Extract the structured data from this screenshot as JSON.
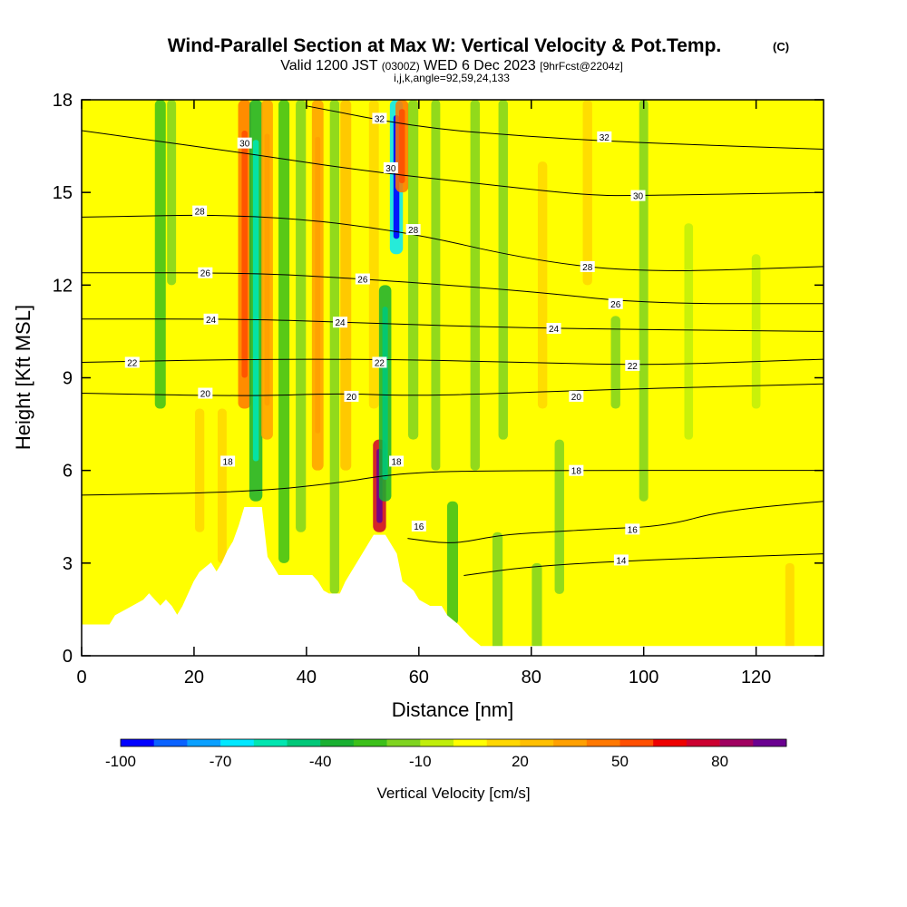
{
  "chart_data": {
    "type": "heatmap",
    "title": "Wind-Parallel Section at Max W: Vertical Velocity & Pot.Temp.",
    "title_suffix": "(C)",
    "subtitle_valid": "Valid 1200 JST",
    "subtitle_zulu": "(0300Z)",
    "subtitle_date": "WED 6 Dec 2023",
    "subtitle_fcst": "[9hrFcst@2204z]",
    "subtitle_params": "i,j,k,angle=92,59,24,133",
    "xlabel": "Distance [nm]",
    "ylabel": "Height [Kft MSL]",
    "xlim": [
      0,
      132
    ],
    "ylim": [
      0,
      18
    ],
    "x_ticks": [
      "0",
      "20",
      "40",
      "60",
      "80",
      "100",
      "120"
    ],
    "y_ticks": [
      "0",
      "3",
      "6",
      "9",
      "12",
      "15",
      "18"
    ],
    "colorbar": {
      "label": "Vertical Velocity [cm/s]",
      "tick_labels": [
        "-100",
        "-70",
        "-40",
        "-10",
        "20",
        "50",
        "80"
      ],
      "bins": [
        -100,
        -90,
        -80,
        -70,
        -60,
        -50,
        -40,
        -30,
        -20,
        -10,
        0,
        10,
        20,
        30,
        40,
        50,
        60,
        70,
        80,
        90,
        100
      ],
      "colors": [
        "#0000ff",
        "#0a62ff",
        "#0aa0ff",
        "#00e8ff",
        "#00e6b0",
        "#00c878",
        "#19b031",
        "#3cc01a",
        "#7fd420",
        "#c0ee0a",
        "#ffff00",
        "#ffd700",
        "#ffbf00",
        "#ffa000",
        "#ff7800",
        "#ff4f00",
        "#ee0000",
        "#cc0030",
        "#a00060",
        "#6a0090"
      ]
    },
    "background_w": 4,
    "vertical_velocity_features": [
      {
        "x": 14,
        "w": -25,
        "z0": 8,
        "z1": 18
      },
      {
        "x": 16,
        "w": -12,
        "z0": 12,
        "z1": 18
      },
      {
        "x": 21,
        "w": 14,
        "z0": 4,
        "z1": 8
      },
      {
        "x": 25,
        "w": 12,
        "z0": 3,
        "z1": 8
      },
      {
        "x": 29,
        "w": 45,
        "z0": 8,
        "z1": 18
      },
      {
        "x": 31,
        "w": -40,
        "z0": 5,
        "z1": 18
      },
      {
        "x": 33,
        "w": 30,
        "z0": 7,
        "z1": 18
      },
      {
        "x": 36,
        "w": -25,
        "z0": 3,
        "z1": 18
      },
      {
        "x": 39,
        "w": -20,
        "z0": 4,
        "z1": 18
      },
      {
        "x": 42,
        "w": 30,
        "z0": 6,
        "z1": 18
      },
      {
        "x": 45,
        "w": -15,
        "z0": 2,
        "z1": 18
      },
      {
        "x": 47,
        "w": 25,
        "z0": 6,
        "z1": 18
      },
      {
        "x": 52,
        "w": 18,
        "z0": 8,
        "z1": 18
      },
      {
        "x": 53,
        "w": 75,
        "z0": 4,
        "z1": 7
      },
      {
        "x": 54,
        "w": -35,
        "z0": 5,
        "z1": 12
      },
      {
        "x": 56,
        "w": -70,
        "z0": 13,
        "z1": 18
      },
      {
        "x": 57,
        "w": 40,
        "z0": 15,
        "z1": 18
      },
      {
        "x": 59,
        "w": -20,
        "z0": 7,
        "z1": 18
      },
      {
        "x": 63,
        "w": -12,
        "z0": 6,
        "z1": 18
      },
      {
        "x": 66,
        "w": -25,
        "z0": 1,
        "z1": 5
      },
      {
        "x": 70,
        "w": -15,
        "z0": 6,
        "z1": 18
      },
      {
        "x": 74,
        "w": -20,
        "z0": 0,
        "z1": 4
      },
      {
        "x": 75,
        "w": -15,
        "z0": 7,
        "z1": 18
      },
      {
        "x": 81,
        "w": -20,
        "z0": 0,
        "z1": 3
      },
      {
        "x": 82,
        "w": 15,
        "z0": 8,
        "z1": 16
      },
      {
        "x": 85,
        "w": -15,
        "z0": 2,
        "z1": 7
      },
      {
        "x": 90,
        "w": 15,
        "z0": 12,
        "z1": 18
      },
      {
        "x": 95,
        "w": -15,
        "z0": 8,
        "z1": 11
      },
      {
        "x": 100,
        "w": -12,
        "z0": 5,
        "z1": 18
      },
      {
        "x": 108,
        "w": -10,
        "z0": 7,
        "z1": 14
      },
      {
        "x": 120,
        "w": -10,
        "z0": 8,
        "z1": 13
      },
      {
        "x": 126,
        "w": 12,
        "z0": 0,
        "z1": 3
      }
    ],
    "terrain": [
      [
        0,
        1
      ],
      [
        5,
        1
      ],
      [
        6,
        1.3
      ],
      [
        9,
        1.6
      ],
      [
        11,
        1.8
      ],
      [
        12,
        2
      ],
      [
        13,
        1.8
      ],
      [
        14,
        1.6
      ],
      [
        15,
        1.8
      ],
      [
        16,
        1.6
      ],
      [
        17,
        1.3
      ],
      [
        18,
        1.6
      ],
      [
        19,
        2
      ],
      [
        20,
        2.4
      ],
      [
        21,
        2.7
      ],
      [
        23,
        3
      ],
      [
        24,
        2.7
      ],
      [
        25,
        3
      ],
      [
        26,
        3.4
      ],
      [
        27,
        3.7
      ],
      [
        28,
        4.2
      ],
      [
        29,
        4.8
      ],
      [
        32,
        4.8
      ],
      [
        33,
        3.2
      ],
      [
        35,
        2.6
      ],
      [
        37,
        2.6
      ],
      [
        39,
        2.6
      ],
      [
        40,
        2.6
      ],
      [
        41,
        2.6
      ],
      [
        42,
        2.4
      ],
      [
        43,
        2.1
      ],
      [
        44,
        2
      ],
      [
        46,
        2
      ],
      [
        47,
        2.4
      ],
      [
        48,
        2.7
      ],
      [
        49,
        3
      ],
      [
        50,
        3.3
      ],
      [
        51,
        3.6
      ],
      [
        52,
        3.9
      ],
      [
        54,
        3.9
      ],
      [
        55,
        3.6
      ],
      [
        56,
        3.3
      ],
      [
        57,
        2.4
      ],
      [
        59,
        2.1
      ],
      [
        60,
        1.8
      ],
      [
        62,
        1.6
      ],
      [
        64,
        1.6
      ],
      [
        65,
        1.3
      ],
      [
        67,
        1
      ],
      [
        69,
        0.6
      ],
      [
        71,
        0.3
      ],
      [
        73,
        0.3
      ],
      [
        132,
        0.3
      ]
    ],
    "isentropes": [
      {
        "label": "14",
        "points": [
          [
            68,
            2.6
          ],
          [
            80,
            2.9
          ],
          [
            100,
            3.1
          ],
          [
            132,
            3.3
          ]
        ]
      },
      {
        "label": "16",
        "points": [
          [
            58,
            3.8
          ],
          [
            66,
            3.6
          ],
          [
            74,
            3.9
          ],
          [
            82,
            4
          ],
          [
            92,
            4.1
          ],
          [
            104,
            4.2
          ],
          [
            114,
            4.7
          ],
          [
            132,
            5
          ]
        ]
      },
      {
        "label": "18",
        "points": [
          [
            0,
            5.2
          ],
          [
            30,
            5.3
          ],
          [
            46,
            5.6
          ],
          [
            56,
            5.9
          ],
          [
            70,
            6
          ],
          [
            132,
            6
          ]
        ]
      },
      {
        "label": "20",
        "points": [
          [
            0,
            8.5
          ],
          [
            30,
            8.4
          ],
          [
            46,
            8.5
          ],
          [
            60,
            8.4
          ],
          [
            90,
            8.6
          ],
          [
            132,
            8.8
          ]
        ]
      },
      {
        "label": "22",
        "points": [
          [
            0,
            9.5
          ],
          [
            30,
            9.6
          ],
          [
            52,
            9.6
          ],
          [
            80,
            9.5
          ],
          [
            100,
            9.4
          ],
          [
            132,
            9.6
          ]
        ]
      },
      {
        "label": "24",
        "points": [
          [
            0,
            10.9
          ],
          [
            30,
            10.9
          ],
          [
            46,
            10.8
          ],
          [
            80,
            10.6
          ],
          [
            132,
            10.5
          ]
        ]
      },
      {
        "label": "26",
        "points": [
          [
            0,
            12.4
          ],
          [
            30,
            12.4
          ],
          [
            50,
            12.2
          ],
          [
            80,
            11.8
          ],
          [
            100,
            11.4
          ],
          [
            132,
            11.4
          ]
        ]
      },
      {
        "label": "28",
        "points": [
          [
            0,
            14.2
          ],
          [
            30,
            14.3
          ],
          [
            56,
            13.8
          ],
          [
            80,
            12.8
          ],
          [
            100,
            12.4
          ],
          [
            132,
            12.6
          ]
        ]
      },
      {
        "label": "30",
        "points": [
          [
            0,
            17
          ],
          [
            28,
            16.3
          ],
          [
            50,
            15.7
          ],
          [
            70,
            15.3
          ],
          [
            90,
            14.9
          ],
          [
            100,
            14.9
          ],
          [
            132,
            15
          ]
        ]
      },
      {
        "label": "32",
        "points": [
          [
            40,
            17.8
          ],
          [
            60,
            17.1
          ],
          [
            80,
            16.8
          ],
          [
            100,
            16.6
          ],
          [
            132,
            16.4
          ]
        ]
      }
    ],
    "contour_labels": [
      {
        "text": "30",
        "x": 29,
        "z": 16.6
      },
      {
        "text": "28",
        "x": 21,
        "z": 14.4
      },
      {
        "text": "26",
        "x": 22,
        "z": 12.4
      },
      {
        "text": "24",
        "x": 23,
        "z": 10.9
      },
      {
        "text": "22",
        "x": 9,
        "z": 9.5
      },
      {
        "text": "20",
        "x": 22,
        "z": 8.5
      },
      {
        "text": "18",
        "x": 26,
        "z": 6.3
      },
      {
        "text": "32",
        "x": 53,
        "z": 17.4
      },
      {
        "text": "30",
        "x": 55,
        "z": 15.8
      },
      {
        "text": "28",
        "x": 59,
        "z": 13.8
      },
      {
        "text": "26",
        "x": 50,
        "z": 12.2
      },
      {
        "text": "24",
        "x": 46,
        "z": 10.8
      },
      {
        "text": "22",
        "x": 53,
        "z": 9.5
      },
      {
        "text": "20",
        "x": 48,
        "z": 8.4
      },
      {
        "text": "18",
        "x": 56,
        "z": 6.3
      },
      {
        "text": "16",
        "x": 60,
        "z": 4.2
      },
      {
        "text": "32",
        "x": 93,
        "z": 16.8
      },
      {
        "text": "30",
        "x": 99,
        "z": 14.9
      },
      {
        "text": "28",
        "x": 90,
        "z": 12.6
      },
      {
        "text": "26",
        "x": 95,
        "z": 11.4
      },
      {
        "text": "24",
        "x": 84,
        "z": 10.6
      },
      {
        "text": "22",
        "x": 98,
        "z": 9.4
      },
      {
        "text": "20",
        "x": 88,
        "z": 8.4
      },
      {
        "text": "18",
        "x": 88,
        "z": 6
      },
      {
        "text": "16",
        "x": 98,
        "z": 4.1
      },
      {
        "text": "14",
        "x": 96,
        "z": 3.1
      }
    ]
  }
}
